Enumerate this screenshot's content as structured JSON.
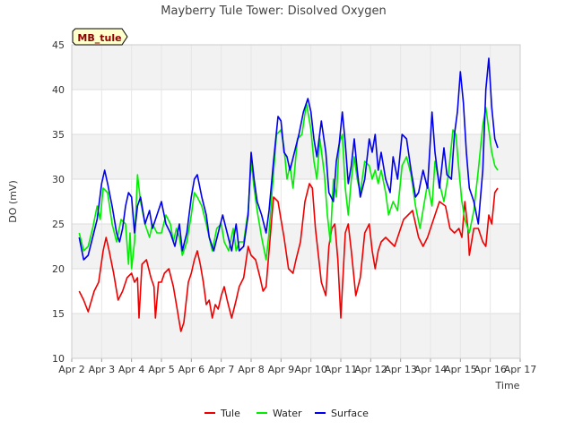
{
  "station_label": "MB_tule",
  "chart_data": {
    "type": "line",
    "title": "Mayberry Tule Tower: Disolved Oxygen",
    "xlabel": "Time",
    "ylabel": "DO (mV)",
    "xlim": [
      2.0,
      17.0
    ],
    "ylim": [
      10,
      45
    ],
    "y_ticks": [
      10,
      15,
      20,
      25,
      30,
      35,
      40,
      45
    ],
    "x_ticks": [
      {
        "value": 2,
        "label": "Apr 2"
      },
      {
        "value": 3,
        "label": "Apr 3"
      },
      {
        "value": 4,
        "label": "Apr 4"
      },
      {
        "value": 5,
        "label": "Apr 5"
      },
      {
        "value": 6,
        "label": "Apr 6"
      },
      {
        "value": 7,
        "label": "Apr 7"
      },
      {
        "value": 8,
        "label": "Apr 8"
      },
      {
        "value": 9,
        "label": "Apr 9"
      },
      {
        "value": 10,
        "label": "Apr 10"
      },
      {
        "value": 11,
        "label": "Apr 11"
      },
      {
        "value": 12,
        "label": "Apr 12"
      },
      {
        "value": 13,
        "label": "Apr 13"
      },
      {
        "value": 14,
        "label": "Apr 14"
      },
      {
        "value": 15,
        "label": "Apr 15"
      },
      {
        "value": 16,
        "label": "Apr 16"
      },
      {
        "value": 17,
        "label": "Apr 17"
      }
    ],
    "legend_position": "bottom-center",
    "grid": true,
    "series": [
      {
        "name": "Tule",
        "color": "#ee0000",
        "x": [
          2.25,
          2.4,
          2.55,
          2.75,
          2.9,
          3.05,
          3.15,
          3.25,
          3.4,
          3.55,
          3.7,
          3.85,
          4.0,
          4.1,
          4.2,
          4.25,
          4.35,
          4.5,
          4.65,
          4.75,
          4.8,
          4.9,
          5.0,
          5.1,
          5.25,
          5.4,
          5.5,
          5.6,
          5.65,
          5.75,
          5.9,
          6.0,
          6.1,
          6.2,
          6.3,
          6.4,
          6.5,
          6.6,
          6.7,
          6.8,
          6.9,
          7.0,
          7.1,
          7.2,
          7.35,
          7.5,
          7.6,
          7.75,
          7.9,
          8.0,
          8.15,
          8.3,
          8.4,
          8.5,
          8.6,
          8.75,
          8.9,
          9.0,
          9.1,
          9.25,
          9.4,
          9.5,
          9.65,
          9.8,
          9.95,
          10.05,
          10.15,
          10.25,
          10.35,
          10.5,
          10.6,
          10.7,
          10.8,
          10.9,
          11.0,
          11.15,
          11.25,
          11.35,
          11.5,
          11.65,
          11.8,
          11.95,
          12.05,
          12.15,
          12.25,
          12.35,
          12.5,
          12.65,
          12.8,
          12.95,
          13.1,
          13.25,
          13.4,
          13.6,
          13.75,
          13.9,
          14.0,
          14.15,
          14.3,
          14.5,
          14.65,
          14.8,
          14.95,
          15.05,
          15.15,
          15.25,
          15.3,
          15.45,
          15.6,
          15.75,
          15.85,
          15.95,
          16.05,
          16.15,
          16.25
        ],
        "values": [
          17.5,
          16.5,
          15.2,
          17.5,
          18.5,
          22.0,
          23.5,
          22.0,
          19.5,
          16.5,
          17.5,
          19.0,
          19.5,
          18.5,
          19.0,
          14.5,
          20.5,
          21.0,
          19.0,
          18.0,
          14.5,
          18.5,
          18.5,
          19.5,
          20.0,
          18.0,
          16.0,
          14.0,
          13.0,
          14.0,
          18.5,
          19.5,
          21.0,
          22.0,
          20.5,
          18.5,
          16.0,
          16.5,
          14.5,
          16.0,
          15.5,
          17.0,
          18.0,
          16.5,
          14.5,
          16.5,
          18.0,
          19.0,
          22.5,
          21.5,
          21.0,
          19.0,
          17.5,
          18.0,
          22.0,
          28.0,
          27.5,
          25.5,
          23.5,
          20.0,
          19.5,
          21.0,
          23.0,
          27.5,
          29.5,
          29.0,
          24.5,
          21.5,
          18.5,
          17.0,
          22.5,
          24.5,
          25.0,
          21.0,
          14.5,
          24.0,
          25.0,
          22.0,
          17.0,
          19.0,
          24.0,
          25.0,
          22.0,
          20.0,
          22.0,
          23.0,
          23.5,
          23.0,
          22.5,
          24.0,
          25.5,
          26.0,
          26.5,
          23.5,
          22.5,
          23.5,
          24.5,
          26.0,
          27.5,
          27.0,
          24.5,
          24.0,
          24.5,
          23.5,
          27.5,
          24.5,
          21.5,
          24.5,
          24.5,
          23.0,
          22.5,
          26.0,
          25.0,
          28.5,
          29.0
        ]
      },
      {
        "name": "Water",
        "color": "#00ee00",
        "x": [
          2.25,
          2.4,
          2.55,
          2.7,
          2.85,
          2.95,
          3.05,
          3.2,
          3.35,
          3.5,
          3.65,
          3.8,
          3.9,
          3.95,
          4.0,
          4.1,
          4.2,
          4.3,
          4.45,
          4.6,
          4.7,
          4.85,
          5.0,
          5.15,
          5.3,
          5.4,
          5.5,
          5.6,
          5.7,
          5.85,
          6.0,
          6.1,
          6.2,
          6.35,
          6.5,
          6.6,
          6.7,
          6.85,
          7.0,
          7.1,
          7.25,
          7.4,
          7.5,
          7.6,
          7.75,
          7.9,
          8.0,
          8.1,
          8.2,
          8.35,
          8.5,
          8.6,
          8.7,
          8.85,
          9.0,
          9.1,
          9.2,
          9.3,
          9.4,
          9.55,
          9.7,
          9.85,
          10.0,
          10.1,
          10.2,
          10.3,
          10.45,
          10.55,
          10.65,
          10.75,
          10.85,
          10.95,
          11.05,
          11.15,
          11.25,
          11.35,
          11.45,
          11.55,
          11.65,
          11.8,
          11.95,
          12.05,
          12.15,
          12.25,
          12.35,
          12.5,
          12.6,
          12.75,
          12.9,
          13.05,
          13.2,
          13.35,
          13.5,
          13.65,
          13.8,
          13.9,
          14.05,
          14.15,
          14.3,
          14.45,
          14.6,
          14.75,
          14.85,
          14.95,
          15.05,
          15.15,
          15.3,
          15.45,
          15.6,
          15.75,
          15.85,
          15.95,
          16.05,
          16.15,
          16.25
        ],
        "values": [
          24.0,
          22.0,
          22.5,
          24.5,
          27.0,
          25.5,
          29.0,
          28.5,
          25.0,
          23.0,
          25.5,
          25.0,
          20.5,
          24.0,
          20.0,
          23.0,
          30.5,
          27.5,
          25.0,
          23.5,
          25.0,
          24.0,
          24.0,
          26.0,
          25.0,
          23.0,
          24.5,
          23.5,
          21.5,
          23.0,
          26.0,
          28.5,
          28.0,
          27.0,
          25.0,
          23.5,
          22.0,
          24.5,
          25.0,
          23.0,
          22.0,
          24.5,
          22.0,
          23.0,
          23.0,
          26.5,
          32.0,
          29.0,
          26.5,
          23.5,
          21.0,
          24.0,
          28.5,
          35.0,
          35.5,
          33.5,
          30.0,
          31.5,
          29.0,
          34.5,
          35.0,
          38.5,
          35.5,
          32.0,
          30.0,
          34.5,
          30.5,
          26.0,
          23.0,
          30.0,
          28.0,
          34.0,
          35.0,
          29.0,
          26.0,
          30.0,
          32.5,
          30.0,
          28.5,
          32.0,
          31.5,
          30.0,
          31.0,
          29.5,
          31.0,
          28.5,
          26.0,
          27.5,
          26.5,
          31.5,
          32.5,
          30.5,
          27.0,
          24.5,
          27.5,
          29.5,
          27.0,
          32.0,
          29.5,
          27.5,
          30.5,
          35.5,
          35.0,
          31.0,
          27.5,
          25.5,
          24.0,
          26.5,
          31.0,
          36.0,
          38.0,
          35.5,
          33.0,
          31.5,
          31.0
        ]
      },
      {
        "name": "Surface",
        "color": "#0000ee",
        "x": [
          2.25,
          2.4,
          2.55,
          2.7,
          2.85,
          3.0,
          3.1,
          3.2,
          3.35,
          3.5,
          3.6,
          3.7,
          3.8,
          3.9,
          4.0,
          4.1,
          4.2,
          4.3,
          4.45,
          4.6,
          4.7,
          4.85,
          5.0,
          5.15,
          5.3,
          5.45,
          5.6,
          5.7,
          5.85,
          6.0,
          6.1,
          6.2,
          6.35,
          6.5,
          6.6,
          6.75,
          6.9,
          7.05,
          7.2,
          7.35,
          7.5,
          7.6,
          7.75,
          7.9,
          8.0,
          8.1,
          8.2,
          8.35,
          8.5,
          8.6,
          8.75,
          8.9,
          9.0,
          9.1,
          9.2,
          9.3,
          9.45,
          9.6,
          9.75,
          9.9,
          10.0,
          10.1,
          10.2,
          10.35,
          10.5,
          10.6,
          10.75,
          10.85,
          10.95,
          11.05,
          11.15,
          11.25,
          11.35,
          11.45,
          11.55,
          11.65,
          11.8,
          11.95,
          12.05,
          12.15,
          12.25,
          12.35,
          12.5,
          12.65,
          12.75,
          12.9,
          13.05,
          13.2,
          13.35,
          13.5,
          13.6,
          13.75,
          13.9,
          14.05,
          14.15,
          14.3,
          14.45,
          14.55,
          14.7,
          14.8,
          14.9,
          15.0,
          15.1,
          15.2,
          15.3,
          15.45,
          15.6,
          15.75,
          15.85,
          15.95,
          16.05,
          16.15,
          16.25
        ],
        "values": [
          23.5,
          21.0,
          21.5,
          23.5,
          25.5,
          29.5,
          31.0,
          29.5,
          27.0,
          24.0,
          23.0,
          24.5,
          27.0,
          28.5,
          28.0,
          24.0,
          27.0,
          28.0,
          25.0,
          26.5,
          24.5,
          26.0,
          27.5,
          25.0,
          24.0,
          22.5,
          25.0,
          22.0,
          24.0,
          28.0,
          30.0,
          30.5,
          28.0,
          26.0,
          23.5,
          22.0,
          24.0,
          26.0,
          24.0,
          22.0,
          25.0,
          22.0,
          22.5,
          26.0,
          33.0,
          30.0,
          27.5,
          26.0,
          24.0,
          26.5,
          32.0,
          37.0,
          36.5,
          33.0,
          32.5,
          31.0,
          33.0,
          35.0,
          37.5,
          39.0,
          37.5,
          34.5,
          32.5,
          36.5,
          33.0,
          28.5,
          27.5,
          32.0,
          34.0,
          37.5,
          34.0,
          29.5,
          31.5,
          34.5,
          31.0,
          28.0,
          30.0,
          34.5,
          33.0,
          35.0,
          31.0,
          33.0,
          30.0,
          28.5,
          32.5,
          30.0,
          35.0,
          34.5,
          31.0,
          28.0,
          28.5,
          31.0,
          29.0,
          37.5,
          33.0,
          29.0,
          33.5,
          30.5,
          30.0,
          35.0,
          37.5,
          42.0,
          38.5,
          33.0,
          29.0,
          27.5,
          25.0,
          31.0,
          40.0,
          43.5,
          38.0,
          34.5,
          33.5
        ]
      }
    ]
  }
}
